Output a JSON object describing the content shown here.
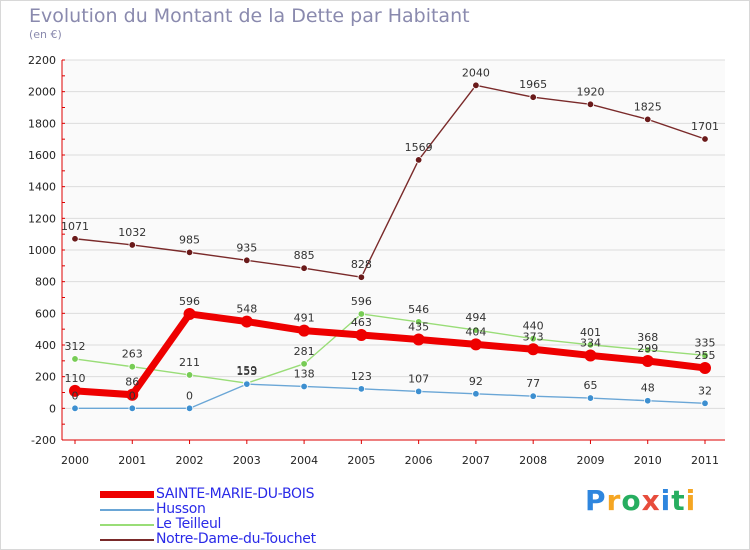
{
  "title": "Evolution du Montant de la Dette par Habitant",
  "subtitle": "(en €)",
  "logo": {
    "letters": [
      "P",
      "r",
      "o",
      "x",
      "i",
      "t",
      "i"
    ],
    "colors": [
      "#2e86de",
      "#f5a623",
      "#27ae60",
      "#e74c3c",
      "#2e86de",
      "#27ae60",
      "#f5a623"
    ]
  },
  "chart_data": {
    "type": "line",
    "title": "Evolution du Montant de la Dette par Habitant",
    "ylabel": "(en €)",
    "xlabel": "",
    "x": [
      "2000",
      "2001",
      "2002",
      "2003",
      "2004",
      "2005",
      "2006",
      "2007",
      "2008",
      "2009",
      "2010",
      "2011"
    ],
    "ylim": [
      -200,
      2200
    ],
    "yticks": [
      -200,
      0,
      200,
      400,
      600,
      800,
      1000,
      1200,
      1400,
      1600,
      1800,
      2000,
      2200
    ],
    "grid": true,
    "series": [
      {
        "name": "SAINTE-MARIE-DU-BOIS",
        "color": "#ee0000",
        "marker": "#ee2222",
        "thick": true,
        "values": [
          110,
          86,
          596,
          548,
          491,
          463,
          435,
          404,
          373,
          334,
          299,
          255
        ],
        "labels": [
          "110",
          "86",
          "596",
          "548",
          "491",
          "463",
          "435",
          "404",
          "373",
          "334",
          "299",
          "255"
        ]
      },
      {
        "name": "Husson",
        "color": "#6aa6d6",
        "marker": "#3d8fd0",
        "thick": false,
        "values": [
          0,
          0,
          0,
          153,
          138,
          123,
          107,
          92,
          77,
          65,
          48,
          32
        ],
        "labels": [
          "0",
          "0",
          "0",
          "153",
          "138",
          "123",
          "107",
          "92",
          "77",
          "65",
          "48",
          "32"
        ]
      },
      {
        "name": "Le Teilleul",
        "color": "#99dd77",
        "marker": "#77cc55",
        "thick": false,
        "values": [
          312,
          263,
          211,
          159,
          281,
          596,
          546,
          494,
          440,
          401,
          368,
          335
        ],
        "labels": [
          "312",
          "263",
          "211",
          "159",
          "281",
          "596",
          "546",
          "494",
          "440",
          "401",
          "368",
          "335"
        ]
      },
      {
        "name": "Notre-Dame-du-Touchet",
        "color": "#7a2a2a",
        "marker": "#6a1a1a",
        "thick": false,
        "values": [
          1071,
          1032,
          985,
          935,
          885,
          828,
          1569,
          2040,
          1965,
          1920,
          1825,
          1701
        ],
        "labels": [
          "1071",
          "1032",
          "985",
          "935",
          "885",
          "828",
          "1569",
          "2040",
          "1965",
          "1920",
          "1825",
          "1701"
        ]
      }
    ]
  }
}
